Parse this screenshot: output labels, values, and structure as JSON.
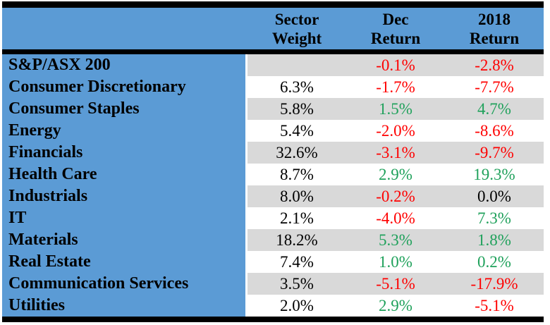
{
  "colors": {
    "header_blue": "#5B9BD5",
    "row_gray": "#D9D9D9",
    "row_white": "#FFFFFF",
    "negative_red": "#FF0000",
    "positive_green": "#1FA15B",
    "border_black": "#000000"
  },
  "table": {
    "header": {
      "weight": [
        "Sector",
        "Weight"
      ],
      "dec": [
        "Dec",
        "Return"
      ],
      "y2018": [
        "2018",
        "Return"
      ]
    },
    "rows": [
      {
        "name": "S&P/ASX 200",
        "weight": "",
        "weight_class": "neu",
        "dec": "-0.1%",
        "dec_class": "neg",
        "y2018": "-2.8%",
        "y2018_class": "neg"
      },
      {
        "name": "Consumer Discretionary",
        "weight": "6.3%",
        "weight_class": "neu",
        "dec": "-1.7%",
        "dec_class": "neg",
        "y2018": "-7.7%",
        "y2018_class": "neg"
      },
      {
        "name": "Consumer Staples",
        "weight": "5.8%",
        "weight_class": "neu",
        "dec": "1.5%",
        "dec_class": "pos",
        "y2018": "4.7%",
        "y2018_class": "pos"
      },
      {
        "name": "Energy",
        "weight": "5.4%",
        "weight_class": "neu",
        "dec": "-2.0%",
        "dec_class": "neg",
        "y2018": "-8.6%",
        "y2018_class": "neg"
      },
      {
        "name": "Financials",
        "weight": "32.6%",
        "weight_class": "neu",
        "dec": "-3.1%",
        "dec_class": "neg",
        "y2018": "-9.7%",
        "y2018_class": "neg"
      },
      {
        "name": "Health Care",
        "weight": "8.7%",
        "weight_class": "neu",
        "dec": "2.9%",
        "dec_class": "pos",
        "y2018": "19.3%",
        "y2018_class": "pos"
      },
      {
        "name": "Industrials",
        "weight": "8.0%",
        "weight_class": "neu",
        "dec": "-0.2%",
        "dec_class": "neg",
        "y2018": "0.0%",
        "y2018_class": "neu"
      },
      {
        "name": "IT",
        "weight": "2.1%",
        "weight_class": "neu",
        "dec": "-4.0%",
        "dec_class": "neg",
        "y2018": "7.3%",
        "y2018_class": "pos"
      },
      {
        "name": "Materials",
        "weight": "18.2%",
        "weight_class": "neu",
        "dec": "5.3%",
        "dec_class": "pos",
        "y2018": "1.8%",
        "y2018_class": "pos"
      },
      {
        "name": "Real Estate",
        "weight": "7.4%",
        "weight_class": "neu",
        "dec": "1.0%",
        "dec_class": "pos",
        "y2018": "0.2%",
        "y2018_class": "pos"
      },
      {
        "name": "Communication Services",
        "weight": "3.5%",
        "weight_class": "neu",
        "dec": "-5.1%",
        "dec_class": "neg",
        "y2018": "-17.9%",
        "y2018_class": "neg"
      },
      {
        "name": "Utilities",
        "weight": "2.0%",
        "weight_class": "neu",
        "dec": "2.9%",
        "dec_class": "pos",
        "y2018": "-5.1%",
        "y2018_class": "neg"
      }
    ]
  },
  "chart_data": {
    "type": "table",
    "columns": [
      "Sector",
      "Sector Weight (%)",
      "Dec Return (%)",
      "2018 Return (%)"
    ],
    "rows": [
      [
        "S&P/ASX 200",
        null,
        -0.1,
        -2.8
      ],
      [
        "Consumer Discretionary",
        6.3,
        -1.7,
        -7.7
      ],
      [
        "Consumer Staples",
        5.8,
        1.5,
        4.7
      ],
      [
        "Energy",
        5.4,
        -2.0,
        -8.6
      ],
      [
        "Financials",
        32.6,
        -3.1,
        -9.7
      ],
      [
        "Health Care",
        8.7,
        2.9,
        19.3
      ],
      [
        "Industrials",
        8.0,
        -0.2,
        0.0
      ],
      [
        "IT",
        2.1,
        -4.0,
        7.3
      ],
      [
        "Materials",
        18.2,
        5.3,
        1.8
      ],
      [
        "Real Estate",
        7.4,
        1.0,
        0.2
      ],
      [
        "Communication Services",
        3.5,
        -5.1,
        -17.9
      ],
      [
        "Utilities",
        2.0,
        2.9,
        -5.1
      ]
    ],
    "notes": "Negative returns shown in red, positive in green, zero/neutral in black. Sector names on blue background; data rows alternate gray/white."
  }
}
